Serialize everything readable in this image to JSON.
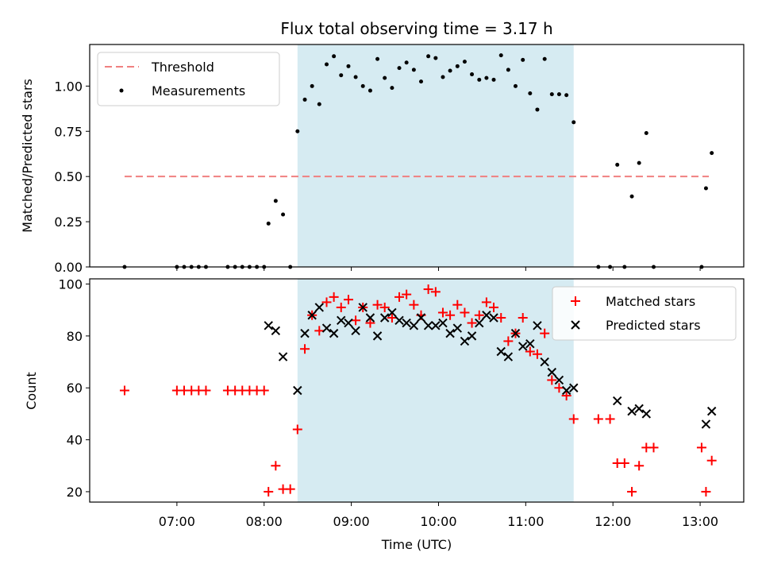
{
  "chart_data": {
    "title": "Flux total observing time = 3.17 h",
    "xlabel": "Time (UTC)",
    "x_tick_labels": [
      "07:00",
      "08:00",
      "09:00",
      "10:00",
      "11:00",
      "12:00",
      "13:00"
    ],
    "x_ticks_hours": [
      7,
      8,
      9,
      10,
      11,
      12,
      13
    ],
    "x_range_hours": [
      6.0,
      13.5
    ],
    "shaded_window_hours": [
      8.383,
      11.55
    ],
    "colors": {
      "shade": "#add8e6",
      "threshold": "#f08080",
      "measurement": "#000000",
      "matched": "#ff0000",
      "predicted": "#000000"
    },
    "top": {
      "type": "scatter",
      "ylabel": "Matched/Predicted stars",
      "ylim": [
        0,
        1.23
      ],
      "y_ticks": [
        0.0,
        0.25,
        0.5,
        0.75,
        1.0
      ],
      "y_tick_labels": [
        "0.00",
        "0.25",
        "0.50",
        "0.75",
        "1.00"
      ],
      "legend_position": "top-left",
      "threshold": {
        "name": "Threshold",
        "value": 0.5,
        "x_start": 6.4,
        "x_end": 13.1
      },
      "measurements": {
        "name": "Measurements",
        "points": [
          [
            6.4,
            0.0
          ],
          [
            7.0,
            0.0
          ],
          [
            7.083,
            0.0
          ],
          [
            7.167,
            0.0
          ],
          [
            7.25,
            0.0
          ],
          [
            7.333,
            0.0
          ],
          [
            7.583,
            0.0
          ],
          [
            7.667,
            0.0
          ],
          [
            7.75,
            0.0
          ],
          [
            7.833,
            0.0
          ],
          [
            7.917,
            0.0
          ],
          [
            8.0,
            0.0
          ],
          [
            8.05,
            0.24
          ],
          [
            8.133,
            0.365
          ],
          [
            8.217,
            0.29
          ],
          [
            8.3,
            0.0
          ],
          [
            8.383,
            0.75
          ],
          [
            8.467,
            0.925
          ],
          [
            8.55,
            1.0
          ],
          [
            8.633,
            0.9
          ],
          [
            8.717,
            1.12
          ],
          [
            8.8,
            1.165
          ],
          [
            8.883,
            1.06
          ],
          [
            8.967,
            1.11
          ],
          [
            9.05,
            1.05
          ],
          [
            9.133,
            1.0
          ],
          [
            9.217,
            0.975
          ],
          [
            9.3,
            1.15
          ],
          [
            9.383,
            1.045
          ],
          [
            9.467,
            0.99
          ],
          [
            9.55,
            1.1
          ],
          [
            9.633,
            1.13
          ],
          [
            9.717,
            1.09
          ],
          [
            9.8,
            1.025
          ],
          [
            9.883,
            1.165
          ],
          [
            9.967,
            1.155
          ],
          [
            10.05,
            1.05
          ],
          [
            10.133,
            1.085
          ],
          [
            10.217,
            1.11
          ],
          [
            10.3,
            1.135
          ],
          [
            10.383,
            1.065
          ],
          [
            10.467,
            1.035
          ],
          [
            10.55,
            1.045
          ],
          [
            10.633,
            1.035
          ],
          [
            10.717,
            1.17
          ],
          [
            10.8,
            1.09
          ],
          [
            10.883,
            1.0
          ],
          [
            10.967,
            1.145
          ],
          [
            11.05,
            0.96
          ],
          [
            11.133,
            0.87
          ],
          [
            11.217,
            1.15
          ],
          [
            11.3,
            0.955
          ],
          [
            11.383,
            0.955
          ],
          [
            11.467,
            0.95
          ],
          [
            11.55,
            0.8
          ],
          [
            11.833,
            0.0
          ],
          [
            11.967,
            0.0
          ],
          [
            12.05,
            0.565
          ],
          [
            12.133,
            0.0
          ],
          [
            12.217,
            0.39
          ],
          [
            12.3,
            0.575
          ],
          [
            12.383,
            0.74
          ],
          [
            12.467,
            0.0
          ],
          [
            13.017,
            0.0
          ],
          [
            13.067,
            0.435
          ],
          [
            13.133,
            0.63
          ]
        ]
      }
    },
    "bottom": {
      "type": "scatter",
      "ylabel": "Count",
      "ylim": [
        16,
        102
      ],
      "y_ticks": [
        20,
        40,
        60,
        80,
        100
      ],
      "y_tick_labels": [
        "20",
        "40",
        "60",
        "80",
        "100"
      ],
      "legend_position": "top-right",
      "series": [
        {
          "name": "Matched stars",
          "marker": "plus",
          "points": [
            [
              6.4,
              59
            ],
            [
              7.0,
              59
            ],
            [
              7.083,
              59
            ],
            [
              7.167,
              59
            ],
            [
              7.25,
              59
            ],
            [
              7.333,
              59
            ],
            [
              7.583,
              59
            ],
            [
              7.667,
              59
            ],
            [
              7.75,
              59
            ],
            [
              7.833,
              59
            ],
            [
              7.917,
              59
            ],
            [
              8.0,
              59
            ],
            [
              8.05,
              20
            ],
            [
              8.133,
              30
            ],
            [
              8.217,
              21
            ],
            [
              8.3,
              21
            ],
            [
              8.383,
              44
            ],
            [
              8.467,
              75
            ],
            [
              8.55,
              88
            ],
            [
              8.633,
              82
            ],
            [
              8.717,
              93
            ],
            [
              8.8,
              95
            ],
            [
              8.883,
              91
            ],
            [
              8.967,
              94
            ],
            [
              9.05,
              86
            ],
            [
              9.133,
              91
            ],
            [
              9.217,
              85
            ],
            [
              9.3,
              92
            ],
            [
              9.383,
              91
            ],
            [
              9.467,
              87
            ],
            [
              9.55,
              95
            ],
            [
              9.633,
              96
            ],
            [
              9.717,
              92
            ],
            [
              9.8,
              88
            ],
            [
              9.883,
              98
            ],
            [
              9.967,
              97
            ],
            [
              10.05,
              89
            ],
            [
              10.133,
              88
            ],
            [
              10.217,
              92
            ],
            [
              10.3,
              89
            ],
            [
              10.383,
              85
            ],
            [
              10.467,
              88
            ],
            [
              10.55,
              93
            ],
            [
              10.633,
              91
            ],
            [
              10.717,
              87
            ],
            [
              10.8,
              78
            ],
            [
              10.883,
              81
            ],
            [
              10.967,
              87
            ],
            [
              11.05,
              74
            ],
            [
              11.133,
              73
            ],
            [
              11.217,
              81
            ],
            [
              11.3,
              63
            ],
            [
              11.383,
              60
            ],
            [
              11.467,
              57
            ],
            [
              11.55,
              48
            ],
            [
              11.833,
              48
            ],
            [
              11.967,
              48
            ],
            [
              12.05,
              31
            ],
            [
              12.133,
              31
            ],
            [
              12.217,
              20
            ],
            [
              12.3,
              30
            ],
            [
              12.383,
              37
            ],
            [
              12.467,
              37
            ],
            [
              13.017,
              37
            ],
            [
              13.067,
              20
            ],
            [
              13.133,
              32
            ]
          ]
        },
        {
          "name": "Predicted stars",
          "marker": "x",
          "points": [
            [
              8.05,
              84
            ],
            [
              8.133,
              82
            ],
            [
              8.217,
              72
            ],
            [
              8.383,
              59
            ],
            [
              8.467,
              81
            ],
            [
              8.55,
              88
            ],
            [
              8.633,
              91
            ],
            [
              8.717,
              83
            ],
            [
              8.8,
              81
            ],
            [
              8.883,
              86
            ],
            [
              8.967,
              85
            ],
            [
              9.05,
              82
            ],
            [
              9.133,
              91
            ],
            [
              9.217,
              87
            ],
            [
              9.3,
              80
            ],
            [
              9.383,
              87
            ],
            [
              9.467,
              89
            ],
            [
              9.55,
              86
            ],
            [
              9.633,
              85
            ],
            [
              9.717,
              84
            ],
            [
              9.8,
              87
            ],
            [
              9.883,
              84
            ],
            [
              9.967,
              84
            ],
            [
              10.05,
              85
            ],
            [
              10.133,
              81
            ],
            [
              10.217,
              83
            ],
            [
              10.3,
              78
            ],
            [
              10.383,
              80
            ],
            [
              10.467,
              85
            ],
            [
              10.55,
              88
            ],
            [
              10.633,
              87
            ],
            [
              10.717,
              74
            ],
            [
              10.8,
              72
            ],
            [
              10.883,
              81
            ],
            [
              10.967,
              76
            ],
            [
              11.05,
              77
            ],
            [
              11.133,
              84
            ],
            [
              11.217,
              70
            ],
            [
              11.3,
              66
            ],
            [
              11.383,
              63
            ],
            [
              11.467,
              59
            ],
            [
              11.55,
              60
            ],
            [
              12.05,
              55
            ],
            [
              12.217,
              51
            ],
            [
              12.3,
              52
            ],
            [
              12.383,
              50
            ],
            [
              13.067,
              46
            ],
            [
              13.133,
              51
            ]
          ]
        }
      ]
    }
  }
}
